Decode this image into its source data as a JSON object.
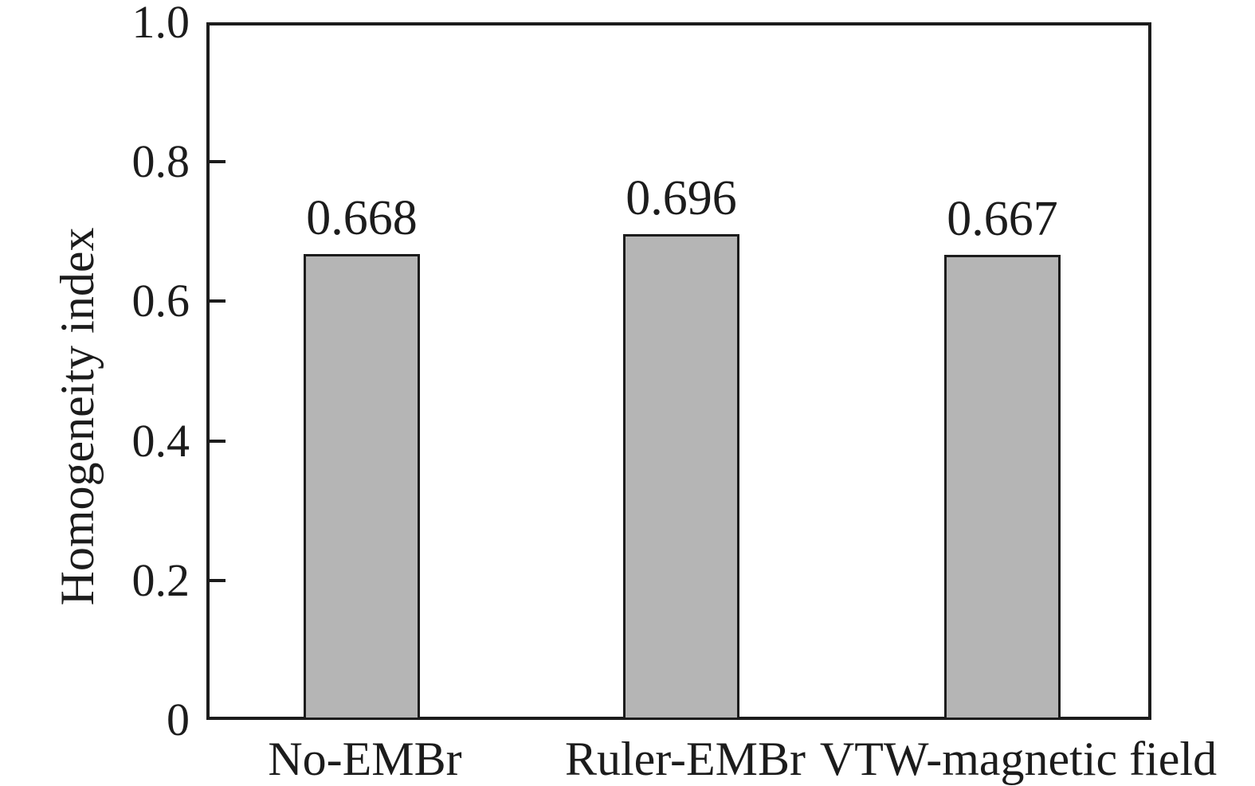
{
  "chart_data": {
    "type": "bar",
    "title": "",
    "categories": [
      "No-EMBr",
      "Ruler-EMBr",
      "VTW-magnetic field"
    ],
    "values": [
      0.668,
      0.696,
      0.667
    ],
    "value_labels": [
      "0.668",
      "0.696",
      "0.667"
    ],
    "xlabel": "",
    "ylabel": "Homogeneity index",
    "ylim": [
      0,
      1.0
    ],
    "yticks": [
      {
        "value": 0,
        "label": "0"
      },
      {
        "value": 0.2,
        "label": "0.2"
      },
      {
        "value": 0.4,
        "label": "0.4"
      },
      {
        "value": 0.6,
        "label": "0.6"
      },
      {
        "value": 0.8,
        "label": "0.8"
      },
      {
        "value": 1.0,
        "label": "1.0"
      }
    ],
    "grid": false,
    "legend": null,
    "colors": {
      "bar_fill": "#b5b5b5",
      "line": "#1c1c1c",
      "text": "#1c1c1c",
      "background": "#ffffff"
    }
  }
}
